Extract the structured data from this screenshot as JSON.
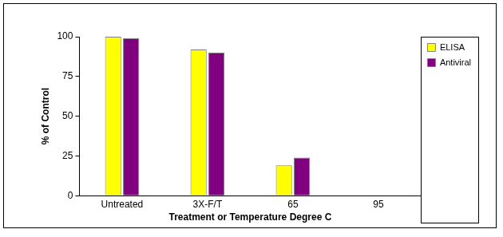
{
  "chart_data": {
    "type": "bar",
    "x_label": "Treatment or Temperature Degree C",
    "y_label": "% of Control",
    "categories": [
      "Untreated",
      "3X-F/T",
      "65",
      "95"
    ],
    "series": [
      {
        "name": "ELISA",
        "color": "#ffff00",
        "values": [
          100,
          92,
          19,
          0
        ]
      },
      {
        "name": "Antiviral",
        "color": "#800080",
        "values": [
          99,
          90,
          24,
          0
        ]
      }
    ],
    "ylim": [
      0,
      100
    ],
    "yticks": [
      0,
      25,
      50,
      75,
      100
    ],
    "grid": false,
    "legend": "upper right"
  }
}
